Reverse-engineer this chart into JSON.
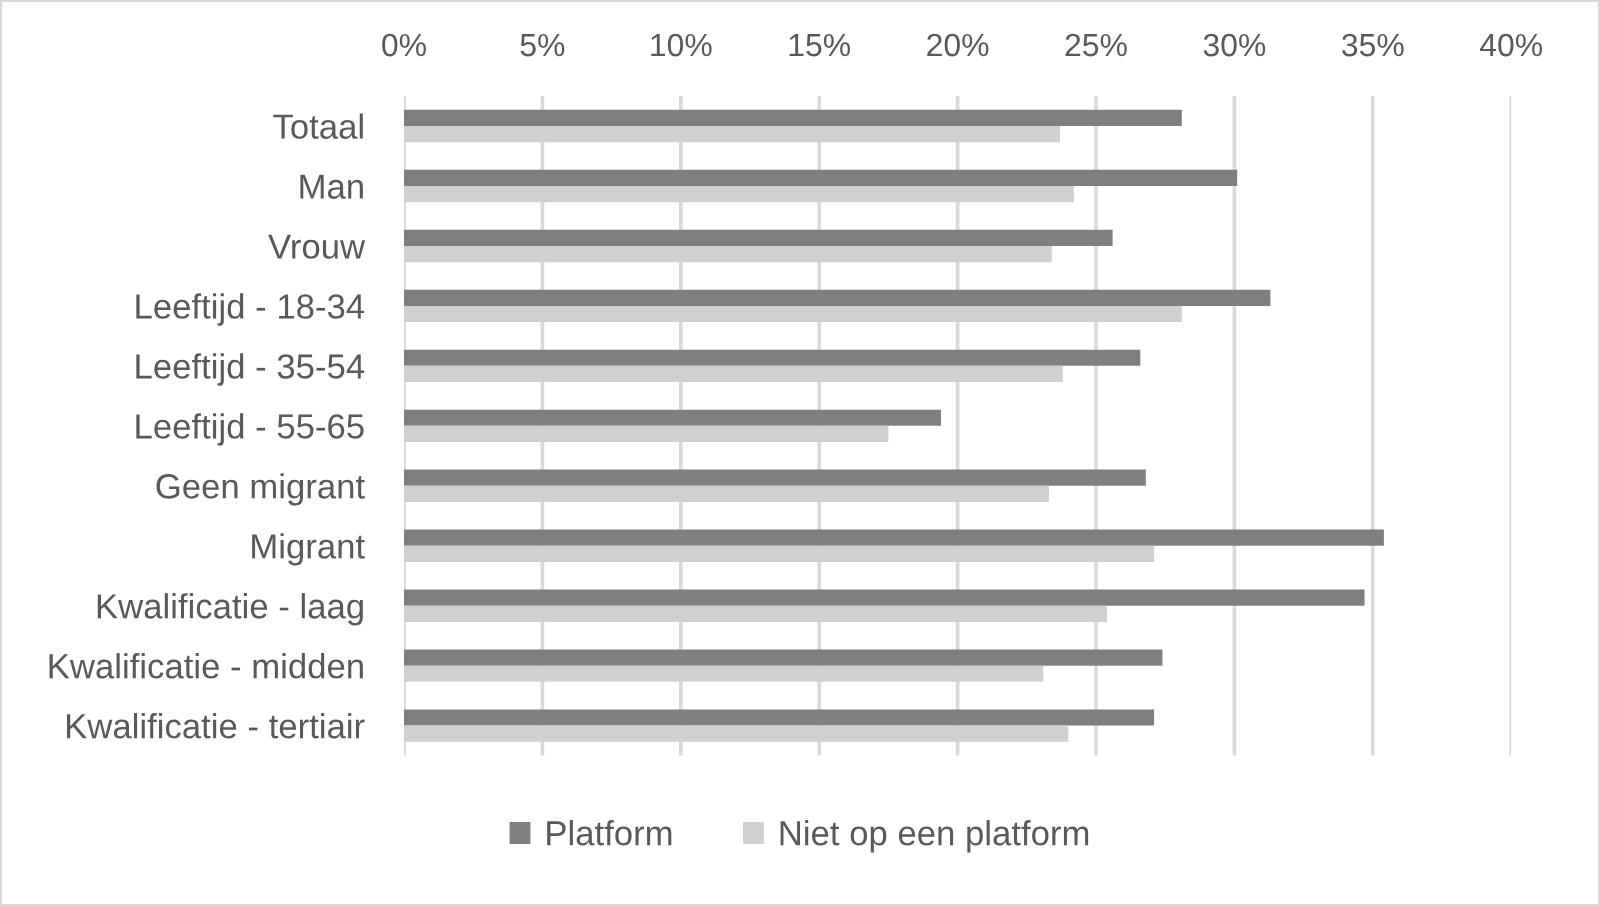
{
  "chart_data": {
    "type": "bar",
    "orientation": "horizontal",
    "categories": [
      "Totaal",
      "Man",
      "Vrouw",
      "Leeftijd - 18-34",
      "Leeftijd - 35-54",
      "Leeftijd - 55-65",
      "Geen migrant",
      "Migrant",
      "Kwalificatie - laag",
      "Kwalificatie - midden",
      "Kwalificatie - tertiair"
    ],
    "series": [
      {
        "name": "Platform",
        "color": "#7f7f7f",
        "values": [
          28.1,
          30.1,
          25.6,
          31.3,
          26.6,
          19.4,
          26.8,
          35.4,
          34.7,
          27.4,
          27.1
        ]
      },
      {
        "name": "Niet op een platform",
        "color": "#d0d0d0",
        "values": [
          23.7,
          24.2,
          23.4,
          28.1,
          23.8,
          17.5,
          23.3,
          27.1,
          25.4,
          23.1,
          24.0
        ]
      }
    ],
    "xlim": [
      0,
      40
    ],
    "xticks": [
      {
        "value": 0,
        "label": "0%"
      },
      {
        "value": 5,
        "label": "5%"
      },
      {
        "value": 10,
        "label": "10%"
      },
      {
        "value": 15,
        "label": "15%"
      },
      {
        "value": 20,
        "label": "20%"
      },
      {
        "value": 25,
        "label": "25%"
      },
      {
        "value": 30,
        "label": "30%"
      },
      {
        "value": 35,
        "label": "35%"
      },
      {
        "value": 40,
        "label": "40%"
      }
    ],
    "grid": "x",
    "legend": "bottom"
  }
}
